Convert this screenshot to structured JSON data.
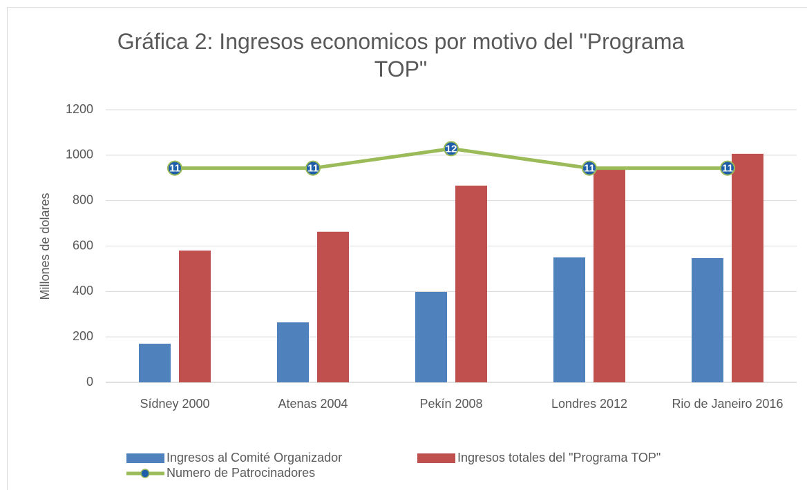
{
  "chart_data": {
    "type": "bar",
    "title": "Gráfica 2: Ingresos economicos por motivo del \"Programa TOP\"",
    "y_label": "Millones de dolares",
    "categories": [
      "Sídney 2000",
      "Atenas 2004",
      "Pekín 2008",
      "Londres 2012",
      "Rio de Janeiro 2016"
    ],
    "series": [
      {
        "name": "Ingresos al Comité Organizador",
        "type": "bar",
        "color": "#4f81bd",
        "values": [
          170,
          264,
          398,
          550,
          547
        ]
      },
      {
        "name": "Ingresos totales del \"Programa TOP\"",
        "type": "bar",
        "color": "#c0504d",
        "values": [
          580,
          663,
          866,
          939,
          1006
        ]
      },
      {
        "name": "Numero de Patrocinadores",
        "type": "line",
        "axis": "y2",
        "color": "#9bbb59",
        "label_color": "#1f5ea8",
        "values": [
          11,
          11,
          12,
          11,
          11
        ]
      }
    ],
    "ylim": [
      0,
      1200
    ],
    "yticks": [
      0,
      200,
      400,
      600,
      800,
      1000,
      1200
    ],
    "y2lim": [
      0,
      14
    ],
    "grid": true
  }
}
